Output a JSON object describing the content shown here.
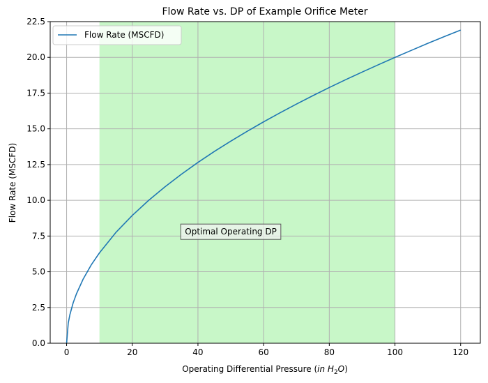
{
  "chart_data": {
    "type": "line",
    "title": "Flow Rate vs. DP of Example Orifice Meter",
    "xlabel_prefix": "Operating Differential Pressure (",
    "xlabel_unit_italic": "in H",
    "xlabel_unit_sub": "2",
    "xlabel_unit_tail": "O",
    "xlabel_suffix": ")",
    "ylabel": "Flow Rate (MSCFD)",
    "xlim": [
      -5,
      126
    ],
    "ylim": [
      0,
      22.5
    ],
    "x_ticks": [
      0,
      20,
      40,
      60,
      80,
      100,
      120
    ],
    "y_ticks": [
      0.0,
      2.5,
      5.0,
      7.5,
      10.0,
      12.5,
      15.0,
      17.5,
      20.0,
      22.5
    ],
    "x_tick_labels": [
      "0",
      "20",
      "40",
      "60",
      "80",
      "100",
      "120"
    ],
    "y_tick_labels": [
      "0.0",
      "2.5",
      "5.0",
      "7.5",
      "10.0",
      "12.5",
      "15.0",
      "17.5",
      "20.0",
      "22.5"
    ],
    "grid": true,
    "legend_position": "top-left",
    "series": [
      {
        "name": "Flow Rate (MSCFD)",
        "color": "#1f77b4",
        "x": [
          0,
          0.5,
          1,
          2,
          3,
          5,
          7.5,
          10,
          15,
          20,
          25,
          30,
          35,
          40,
          45,
          50,
          55,
          60,
          65,
          70,
          75,
          80,
          85,
          90,
          95,
          100,
          105,
          110,
          115,
          120
        ],
        "y": [
          0,
          1.41,
          2.0,
          2.83,
          3.46,
          4.47,
          5.48,
          6.32,
          7.75,
          8.94,
          10.0,
          10.95,
          11.83,
          12.65,
          13.42,
          14.14,
          14.83,
          15.49,
          16.12,
          16.73,
          17.32,
          17.89,
          18.44,
          18.97,
          19.49,
          20.0,
          20.49,
          20.98,
          21.45,
          21.91
        ]
      }
    ],
    "shaded_region": {
      "x_start": 10,
      "x_end": 100,
      "color": "#c8f7c8"
    },
    "annotation": {
      "text": "Optimal Operating DP",
      "x": 50,
      "y": 7.8
    }
  }
}
